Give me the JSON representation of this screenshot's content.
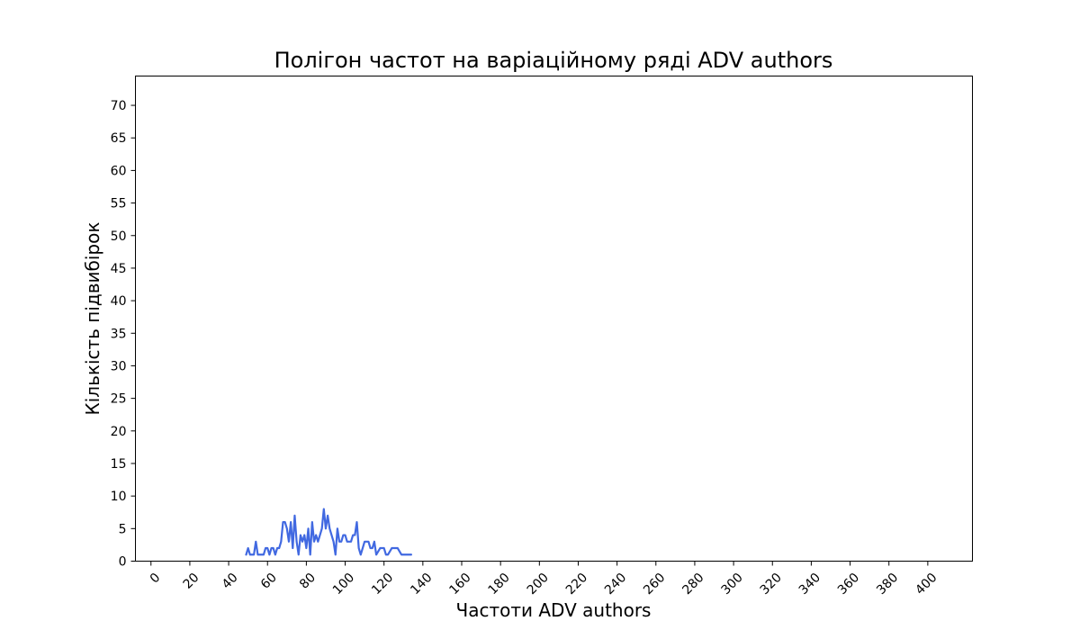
{
  "chart_data": {
    "type": "line",
    "title": "Полігон частот на варіаційному ряді ADV authors",
    "xlabel": "Частоти ADV authors",
    "ylabel": "Кількість підвибірок",
    "xlim": [
      -8,
      423
    ],
    "ylim": [
      0,
      74.5
    ],
    "xticks": [
      0,
      20,
      40,
      60,
      80,
      100,
      120,
      140,
      160,
      180,
      200,
      220,
      240,
      260,
      280,
      300,
      320,
      340,
      360,
      380,
      400
    ],
    "yticks": [
      0,
      5,
      10,
      15,
      20,
      25,
      30,
      35,
      40,
      45,
      50,
      55,
      60,
      65,
      70
    ],
    "grid": false,
    "series": [
      {
        "color": "#4169e1",
        "x": [
          49,
          50,
          51,
          52,
          53,
          54,
          55,
          57,
          58,
          59,
          60,
          61,
          62,
          63,
          64,
          65,
          66,
          67,
          68,
          69,
          70,
          71,
          72,
          73,
          74,
          75,
          76,
          77,
          78,
          79,
          80,
          81,
          82,
          83,
          84,
          85,
          86,
          87,
          88,
          89,
          90,
          91,
          92,
          93,
          94,
          95,
          96,
          97,
          98,
          99,
          100,
          101,
          102,
          103,
          104,
          105,
          106,
          107,
          108,
          109,
          110,
          111,
          112,
          113,
          114,
          115,
          116,
          118,
          120,
          121,
          122,
          124,
          125,
          127,
          129,
          130,
          132,
          134
        ],
        "y": [
          1,
          2,
          1,
          1,
          1,
          3,
          1,
          1,
          1,
          2,
          2,
          1,
          2,
          2,
          1,
          2,
          2,
          3,
          6,
          6,
          5,
          3,
          6,
          2,
          7,
          3,
          1,
          4,
          3,
          4,
          2,
          5,
          1,
          6,
          3,
          4,
          3,
          4,
          5,
          8,
          5,
          7,
          5,
          4,
          3,
          1,
          5,
          3,
          3,
          4,
          4,
          3,
          3,
          3,
          4,
          4,
          6,
          2,
          1,
          2,
          3,
          3,
          3,
          2,
          2,
          3,
          1,
          2,
          2,
          1,
          1,
          2,
          2,
          2,
          1,
          1,
          1,
          1
        ]
      }
    ]
  }
}
